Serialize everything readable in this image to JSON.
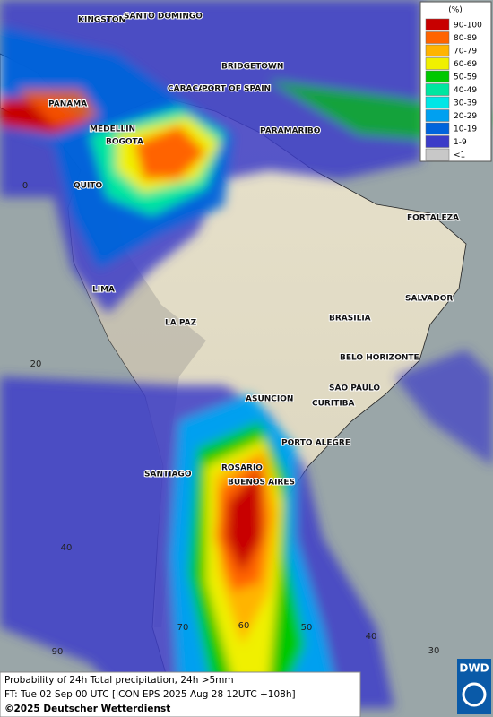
{
  "map": {
    "cities": [
      "KINGSTON",
      "SANTO DOMINGO",
      "BRIDGETOWN",
      "CARACAS",
      "PORT OF SPAIN",
      "PANAMA",
      "MEDELLIN",
      "BOGOTA",
      "PARAMARIBO",
      "QUITO",
      "FORTALEZA",
      "LIMA",
      "SALVADOR",
      "LA PAZ",
      "BRASILIA",
      "BELO HORIZONTE",
      "SAO PAULO",
      "ASUNCION",
      "CURITIBA",
      "PORTO ALEGRE",
      "ROSARIO",
      "BUENOS AIRES",
      "SANTIAGO"
    ],
    "grid_labels": [
      "0",
      "20",
      "40",
      "90",
      "70",
      "60",
      "50",
      "40",
      "30"
    ]
  },
  "legend": {
    "title": "(%)",
    "items": [
      {
        "label": "90-100",
        "color": "#c80000"
      },
      {
        "label": "80-89",
        "color": "#ff6400"
      },
      {
        "label": "70-79",
        "color": "#ffb400"
      },
      {
        "label": "60-69",
        "color": "#f0f000"
      },
      {
        "label": "50-59",
        "color": "#00c800"
      },
      {
        "label": "40-49",
        "color": "#00e6a0"
      },
      {
        "label": "30-39",
        "color": "#00e6e6"
      },
      {
        "label": "20-29",
        "color": "#00a0f0"
      },
      {
        "label": "10-19",
        "color": "#0064dc"
      },
      {
        "label": "1-9",
        "color": "#3c3cc8"
      },
      {
        "label": "<1",
        "color": "#c8c8c8"
      }
    ]
  },
  "caption": [
    "Probability of 24h Total precipitation, 24h >5mm",
    "FT: Tue 02 Sep 00 UTC [ICON EPS 2025 Aug 28 12UTC +108h]",
    "©2025 Deutscher Wetterdienst"
  ],
  "logo": "DWD"
}
